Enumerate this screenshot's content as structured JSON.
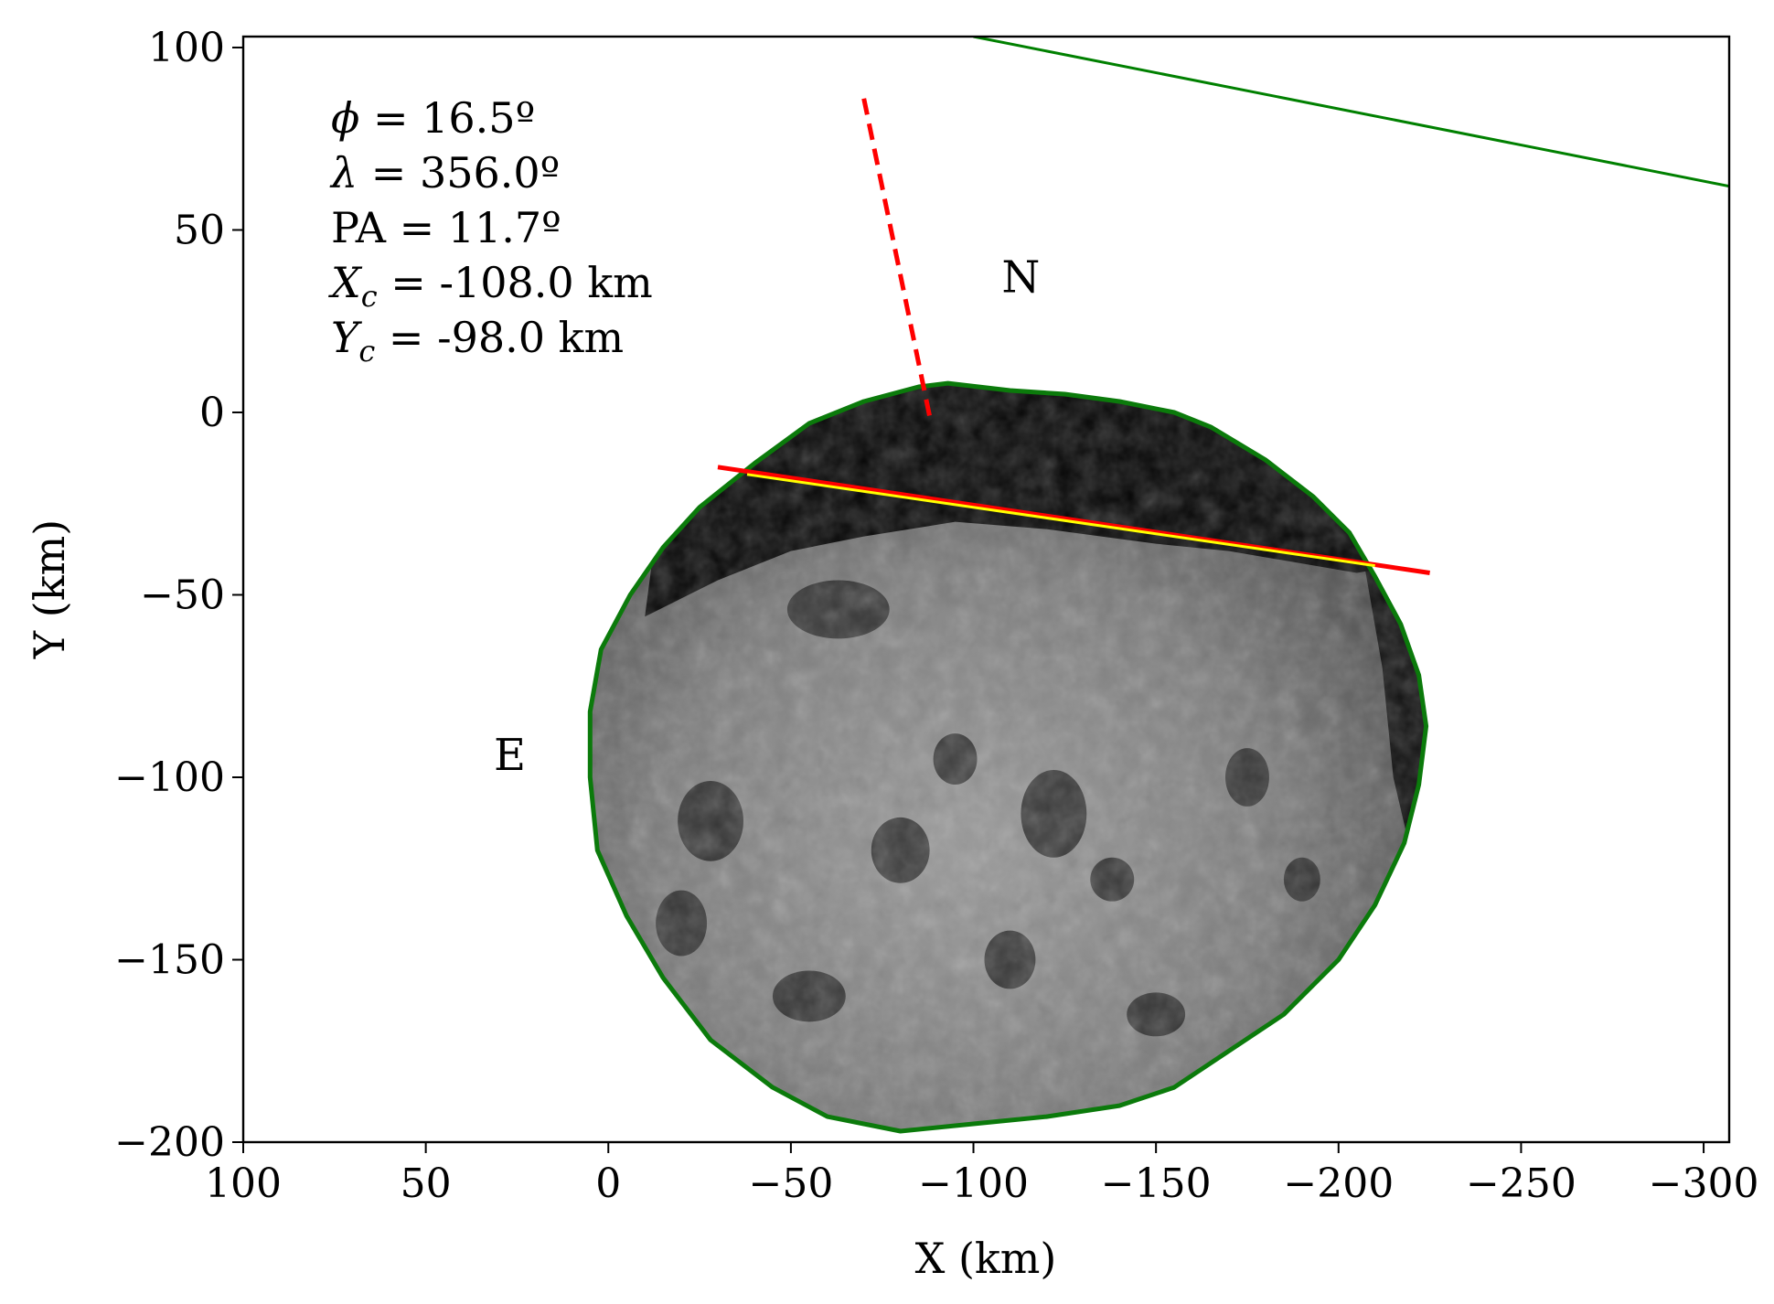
{
  "chart_data": {
    "type": "scatter",
    "xlabel": "X (km)",
    "ylabel": "Y (km)",
    "xlim": [
      100,
      -307
    ],
    "ylim": [
      -200,
      103
    ],
    "x_ticks": [
      100,
      50,
      0,
      -50,
      -100,
      -150,
      -200,
      -250,
      -300
    ],
    "x_tick_labels": [
      "100",
      "50",
      "0",
      "−50",
      "−100",
      "−150",
      "−200",
      "−250",
      "−300"
    ],
    "y_ticks": [
      100,
      50,
      0,
      -50,
      -100,
      -150,
      -200
    ],
    "y_tick_labels": [
      "100",
      "50",
      "0",
      "−50",
      "−100",
      "−150",
      "−200"
    ],
    "grid": false,
    "annotations": [
      {
        "symbol": "ϕ",
        "text": " = 16.5º"
      },
      {
        "symbol": "λ",
        "text": " = 356.0º"
      },
      {
        "symbol": "",
        "text": "PA = 11.7º"
      },
      {
        "symbol": "X",
        "sub": "c",
        "text": " = -108.0 km"
      },
      {
        "symbol": "Y",
        "sub": "c",
        "text": " = -98.0 km"
      }
    ],
    "direction_labels": {
      "north": {
        "text": "N",
        "x": -113,
        "y": 37
      },
      "east": {
        "text": "E",
        "x": 27,
        "y": -94
      }
    },
    "body_center": {
      "x": -108,
      "y": -98
    },
    "body_outline": [
      [
        -93,
        8
      ],
      [
        -110,
        6
      ],
      [
        -125,
        5
      ],
      [
        -140,
        3
      ],
      [
        -155,
        0
      ],
      [
        -165,
        -4
      ],
      [
        -180,
        -13
      ],
      [
        -193,
        -23
      ],
      [
        -203,
        -33
      ],
      [
        -210,
        -45
      ],
      [
        -217,
        -58
      ],
      [
        -222,
        -72
      ],
      [
        -224,
        -86
      ],
      [
        -222,
        -102
      ],
      [
        -218,
        -118
      ],
      [
        -210,
        -135
      ],
      [
        -200,
        -150
      ],
      [
        -185,
        -165
      ],
      [
        -170,
        -175
      ],
      [
        -155,
        -185
      ],
      [
        -140,
        -190
      ],
      [
        -120,
        -193
      ],
      [
        -100,
        -195
      ],
      [
        -80,
        -197
      ],
      [
        -60,
        -193
      ],
      [
        -45,
        -185
      ],
      [
        -28,
        -172
      ],
      [
        -15,
        -155
      ],
      [
        -5,
        -138
      ],
      [
        3,
        -120
      ],
      [
        5,
        -100
      ],
      [
        5,
        -82
      ],
      [
        2,
        -65
      ],
      [
        -6,
        -50
      ],
      [
        -15,
        -37
      ],
      [
        -25,
        -26
      ],
      [
        -40,
        -14
      ],
      [
        -55,
        -3
      ],
      [
        -70,
        3
      ],
      [
        -85,
        7
      ]
    ],
    "series": [
      {
        "name": "",
        "color": "#008000",
        "style": "solid",
        "x": [
          -100,
          -307
        ],
        "y": [
          103,
          62
        ]
      },
      {
        "name": "",
        "color": "#ff0000",
        "style": "dashed",
        "x": [
          -70,
          -88
        ],
        "y": [
          86,
          -1
        ]
      },
      {
        "name": "",
        "color": "#ff0000",
        "style": "solid",
        "x": [
          -30,
          -225
        ],
        "y": [
          -15,
          -44
        ]
      },
      {
        "name": "",
        "color": "#ffff00",
        "style": "solid",
        "x": [
          -38,
          -210
        ],
        "y": [
          -17,
          -42
        ]
      }
    ],
    "body_colors": {
      "outline": "#0b7a0b",
      "dark": "#050505",
      "surface": "#8a8a8a"
    }
  }
}
